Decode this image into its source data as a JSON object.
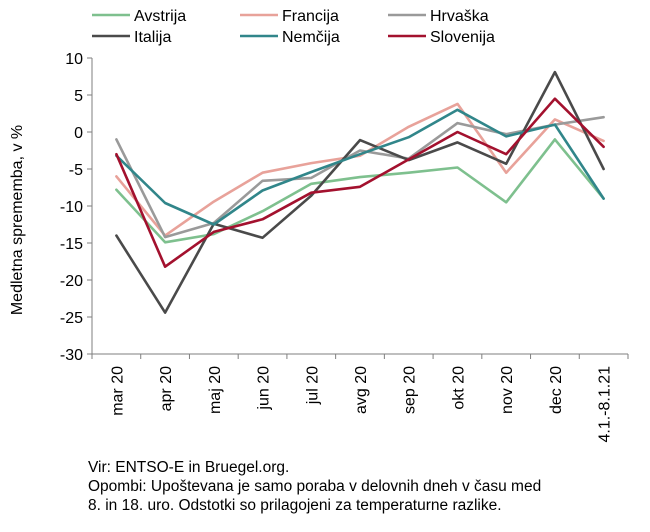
{
  "chart_data": {
    "type": "line",
    "ylabel": "Medletna sprememba, v %",
    "xlabel": "",
    "ylim": [
      -30,
      10
    ],
    "yticks": [
      -30,
      -25,
      -20,
      -15,
      -10,
      -5,
      0,
      5,
      10
    ],
    "grid": false,
    "legend_position": "top",
    "categories": [
      "mar 20",
      "apr 20",
      "maj 20",
      "jun 20",
      "jul 20",
      "avg 20",
      "sep 20",
      "okt 20",
      "nov 20",
      "dec 20",
      "4.1.-8.1.21"
    ],
    "series": [
      {
        "name": "Avstrija",
        "color": "#7ec08e",
        "values": [
          -7.8,
          -14.9,
          -13.8,
          -10.7,
          -7.0,
          -6.1,
          -5.5,
          -4.8,
          -9.5,
          -1.0,
          -9.0
        ]
      },
      {
        "name": "Francija",
        "color": "#e8a29a",
        "values": [
          -6.0,
          -14.0,
          -9.4,
          -5.5,
          -4.2,
          -3.2,
          0.7,
          3.8,
          -5.5,
          1.7,
          -1.2
        ]
      },
      {
        "name": "Hrvaška",
        "color": "#9a9a9a",
        "values": [
          -1.0,
          -14.2,
          -12.3,
          -6.6,
          -6.2,
          -2.5,
          -3.6,
          1.2,
          -0.3,
          1.0,
          2.0
        ]
      },
      {
        "name": "Italija",
        "color": "#4a4a4a",
        "values": [
          -14.0,
          -24.4,
          -12.4,
          -14.3,
          -8.6,
          -1.1,
          -3.8,
          -1.4,
          -4.3,
          8.1,
          -5.0
        ]
      },
      {
        "name": "Nemčija",
        "color": "#31868a",
        "values": [
          -3.2,
          -9.6,
          -12.5,
          -7.9,
          -5.4,
          -3.0,
          -0.7,
          3.0,
          -0.6,
          1.0,
          -9.0
        ]
      },
      {
        "name": "Slovenija",
        "color": "#a3112e",
        "values": [
          -3.0,
          -18.2,
          -13.5,
          -11.8,
          -8.2,
          -7.4,
          -3.7,
          0.0,
          -3.0,
          4.5,
          -2.0
        ]
      }
    ]
  },
  "notes": {
    "source": "Vir: ENTSO-E in Bruegel.org.",
    "line1": "Opombi: Upoštevana je samo poraba v delovnih dneh v času med",
    "line2": "8. in 18. uro. Odstotki so prilagojeni za temperaturne razlike."
  }
}
